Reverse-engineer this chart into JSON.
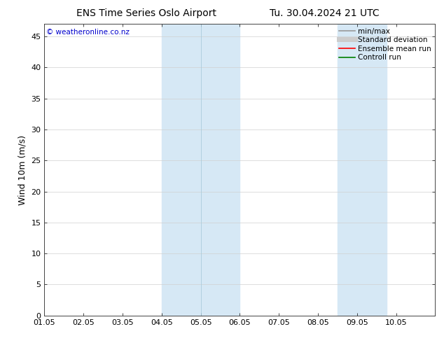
{
  "title_left": "ENS Time Series Oslo Airport",
  "title_right": "Tu. 30.04.2024 21 UTC",
  "ylabel": "Wind 10m (m/s)",
  "watermark": "© weatheronline.co.nz",
  "xlim": [
    0,
    10
  ],
  "ylim": [
    0,
    47
  ],
  "xtick_positions": [
    0,
    1,
    2,
    3,
    4,
    5,
    6,
    7,
    8,
    9,
    10
  ],
  "xtick_labels": [
    "01.05",
    "02.05",
    "03.05",
    "04.05",
    "05.05",
    "06.05",
    "07.05",
    "08.05",
    "09.05",
    "10.05",
    ""
  ],
  "ytick_values": [
    0,
    5,
    10,
    15,
    20,
    25,
    30,
    35,
    40,
    45
  ],
  "shade_regions": [
    {
      "xmin": 3.0,
      "xmax": 5.0
    },
    {
      "xmin": 7.5,
      "xmax": 8.75
    }
  ],
  "shade_color": "#d6e8f5",
  "vertical_line_x": 4.0,
  "bg_color": "#ffffff",
  "grid_color": "#d0d0d0",
  "legend_items": [
    {
      "label": "min/max",
      "color": "#999999",
      "lw": 1.2
    },
    {
      "label": "Standard deviation",
      "color": "#cccccc",
      "lw": 5
    },
    {
      "label": "Ensemble mean run",
      "color": "#ff0000",
      "lw": 1.2
    },
    {
      "label": "Controll run",
      "color": "#008000",
      "lw": 1.2
    }
  ],
  "title_fontsize": 10,
  "watermark_color": "#0000cc",
  "axis_label_fontsize": 9,
  "tick_fontsize": 8,
  "legend_fontsize": 7.5
}
